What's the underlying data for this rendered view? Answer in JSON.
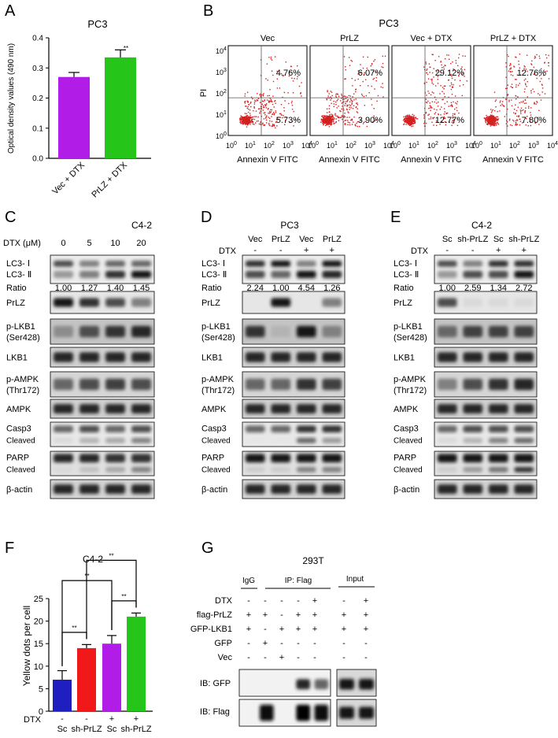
{
  "panel_labels": {
    "A": "A",
    "B": "B",
    "C": "C",
    "D": "D",
    "E": "E",
    "F": "F",
    "G": "G"
  },
  "colors": {
    "purple": "#b11de6",
    "green": "#25c51a",
    "blue": "#1f1fbf",
    "red": "#f01818",
    "dots": "#d32020"
  },
  "panelA": {
    "title": "PC3",
    "chart_data": {
      "type": "bar",
      "categories": [
        "Vec + DTX",
        "PrLZ + DTX"
      ],
      "values": [
        0.27,
        0.335
      ],
      "errors": [
        0.015,
        0.025
      ],
      "ylabel": "Optical density values (490 nm)",
      "ylim": [
        0,
        0.4
      ],
      "yticks": [
        "0.0",
        "0.1",
        "0.2",
        "0.3",
        "0.4"
      ],
      "annotations": [
        "**"
      ]
    }
  },
  "panelB": {
    "title": "PC3",
    "plots": [
      {
        "name": "Vec",
        "q2": "4.76%",
        "q4": "5.73%"
      },
      {
        "name": "PrLZ",
        "q2": "6.07%",
        "q4": "3.90%"
      },
      {
        "name": "Vec + DTX",
        "q2": "29.12%",
        "q4": "12.77%"
      },
      {
        "name": "PrLZ + DTX",
        "q2": "12.76%",
        "q4": "7.80%"
      }
    ],
    "xlabel": "Annexin V FITC",
    "ylabel": "PI"
  },
  "panelC": {
    "title": "C4-2",
    "header": "DTX (μM)",
    "doses": [
      "0",
      "5",
      "10",
      "20"
    ],
    "ratio_label": "Ratio",
    "ratios": [
      "1.00",
      "1.27",
      "1.40",
      "1.45"
    ]
  },
  "panelD": {
    "title": "PC3",
    "groups": [
      "Vec",
      "PrLZ",
      "Vec",
      "PrLZ"
    ],
    "dtx": [
      "-",
      "-",
      "+",
      "+"
    ],
    "ratio_label": "Ratio",
    "ratios": [
      "2.24",
      "1.00",
      "4.54",
      "1.26"
    ]
  },
  "panelE": {
    "title": "C4-2",
    "groups": [
      "Sc",
      "sh-PrLZ",
      "Sc",
      "sh-PrLZ"
    ],
    "dtx": [
      "-",
      "-",
      "+",
      "+"
    ],
    "ratio_label": "Ratio",
    "ratios": [
      "1.00",
      "2.59",
      "1.34",
      "2.72"
    ]
  },
  "blot_labels": {
    "dtx": "DTX",
    "lc3i": "LC3- Ⅰ",
    "lc3ii": "LC3- Ⅱ",
    "prlz": "PrLZ",
    "plkb1": "p-LKB1",
    "plkb1b": "(Ser428)",
    "lkb1": "LKB1",
    "pampk": "p-AMPK",
    "pampkb": "(Thr172)",
    "ampk": "AMPK",
    "casp3": "Casp3",
    "cleaved": "Cleaved",
    "parp": "PARP",
    "actin": "β-actin"
  },
  "panelF": {
    "title": "C4-2",
    "chart_data": {
      "type": "bar",
      "categories": [
        "Sc",
        "sh-PrLZ",
        "Sc",
        "sh-PrLZ"
      ],
      "dtx": [
        "-",
        "-",
        "+",
        "+"
      ],
      "row_label": "DTX",
      "values": [
        7,
        14,
        15,
        21
      ],
      "errors": [
        2,
        0.8,
        1.8,
        0.8
      ],
      "ylabel": "Yellow dots per cell",
      "ylim": [
        0,
        25
      ],
      "yticks": [
        "0",
        "5",
        "10",
        "15",
        "20",
        "25"
      ],
      "annotations": [
        "**",
        "**",
        "**",
        "**"
      ]
    }
  },
  "panelG": {
    "title": "293T",
    "col_heads": {
      "igg": "IgG",
      "ip": "IP: Flag",
      "input": "Input"
    },
    "rows": [
      {
        "label": "DTX",
        "vals": [
          "-",
          "-",
          "-",
          "-",
          "+",
          "-",
          "+"
        ]
      },
      {
        "label": "flag-PrLZ",
        "vals": [
          "+",
          "+",
          "-",
          "+",
          "+",
          "+",
          "+"
        ]
      },
      {
        "label": "GFP-LKB1",
        "vals": [
          "+",
          "-",
          "+",
          "+",
          "+",
          "+",
          "+"
        ]
      },
      {
        "label": "GFP",
        "vals": [
          "-",
          "+",
          "-",
          "-",
          "-",
          "-",
          "-"
        ]
      },
      {
        "label": "Vec",
        "vals": [
          "-",
          "-",
          "+",
          "-",
          "-",
          "-",
          "-"
        ]
      }
    ],
    "blots": {
      "gfp": "IB: GFP",
      "flag": "IB: Flag"
    }
  }
}
